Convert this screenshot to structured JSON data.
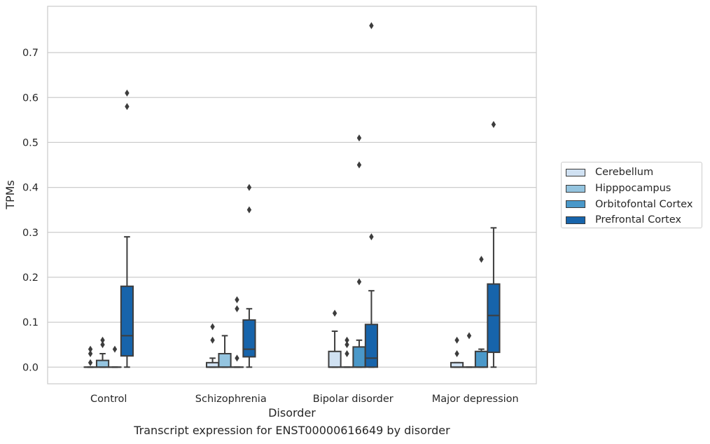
{
  "chart_data": {
    "type": "box",
    "xlabel": "Disorder",
    "ylabel": "TPMs",
    "caption": "Transcript expression for ENST00000616649 by disorder",
    "categories": [
      "Control",
      "Schizophrenia",
      "Bipolar disorder",
      "Major depression"
    ],
    "ylim": [
      -0.037,
      0.803
    ],
    "yticks": [
      0.0,
      0.1,
      0.2,
      0.3,
      0.4,
      0.5,
      0.6,
      0.7
    ],
    "ytick_labels": [
      "0.0",
      "0.1",
      "0.2",
      "0.3",
      "0.4",
      "0.5",
      "0.6",
      "0.7"
    ],
    "grid": "horizontal",
    "legend_position": "right",
    "series": [
      {
        "name": "Cerebellum",
        "color": "#d0e1f2",
        "boxes": [
          {
            "whislo": 0.0,
            "q1": 0.0,
            "med": 0.0,
            "q3": 0.0,
            "whishi": 0.0,
            "fliers": [
              0.04,
              0.03,
              0.01
            ]
          },
          {
            "whislo": 0.0,
            "q1": 0.0,
            "med": 0.0,
            "q3": 0.01,
            "whishi": 0.02,
            "fliers": [
              0.09,
              0.06
            ]
          },
          {
            "whislo": 0.0,
            "q1": 0.0,
            "med": 0.0,
            "q3": 0.035,
            "whishi": 0.08,
            "fliers": [
              0.12
            ]
          },
          {
            "whislo": 0.0,
            "q1": 0.0,
            "med": 0.0,
            "q3": 0.01,
            "whishi": 0.01,
            "fliers": [
              0.06,
              0.03
            ]
          }
        ]
      },
      {
        "name": "Hipppocampus",
        "color": "#94c4df",
        "boxes": [
          {
            "whislo": 0.0,
            "q1": 0.0,
            "med": 0.0,
            "q3": 0.015,
            "whishi": 0.03,
            "fliers": [
              0.06,
              0.05
            ]
          },
          {
            "whislo": 0.0,
            "q1": 0.0,
            "med": 0.0,
            "q3": 0.03,
            "whishi": 0.07,
            "fliers": []
          },
          {
            "whislo": 0.0,
            "q1": 0.0,
            "med": 0.0,
            "q3": 0.0,
            "whishi": 0.0,
            "fliers": [
              0.06,
              0.05,
              0.03
            ]
          },
          {
            "whislo": 0.0,
            "q1": 0.0,
            "med": 0.0,
            "q3": 0.0,
            "whishi": 0.0,
            "fliers": [
              0.07
            ]
          }
        ]
      },
      {
        "name": "Orbitofontal Cortex",
        "color": "#4a98c9",
        "boxes": [
          {
            "whislo": 0.0,
            "q1": 0.0,
            "med": 0.0,
            "q3": 0.0,
            "whishi": 0.0,
            "fliers": [
              0.04
            ]
          },
          {
            "whislo": 0.0,
            "q1": 0.0,
            "med": 0.0,
            "q3": 0.0,
            "whishi": 0.0,
            "fliers": [
              0.15,
              0.13,
              0.02
            ]
          },
          {
            "whislo": 0.0,
            "q1": 0.0,
            "med": 0.0,
            "q3": 0.045,
            "whishi": 0.06,
            "fliers": [
              0.51,
              0.45,
              0.19
            ]
          },
          {
            "whislo": 0.0,
            "q1": 0.0,
            "med": 0.0,
            "q3": 0.035,
            "whishi": 0.04,
            "fliers": [
              0.24
            ]
          }
        ]
      },
      {
        "name": "Prefrontal Cortex",
        "color": "#1764ab",
        "boxes": [
          {
            "whislo": 0.0,
            "q1": 0.025,
            "med": 0.07,
            "q3": 0.18,
            "whishi": 0.29,
            "fliers": [
              0.61,
              0.58
            ]
          },
          {
            "whislo": 0.0,
            "q1": 0.023,
            "med": 0.04,
            "q3": 0.105,
            "whishi": 0.13,
            "fliers": [
              0.4,
              0.35
            ]
          },
          {
            "whislo": 0.0,
            "q1": 0.0,
            "med": 0.02,
            "q3": 0.095,
            "whishi": 0.17,
            "fliers": [
              0.76,
              0.29
            ]
          },
          {
            "whislo": 0.0,
            "q1": 0.033,
            "med": 0.115,
            "q3": 0.185,
            "whishi": 0.31,
            "fliers": [
              0.54
            ]
          }
        ]
      }
    ]
  }
}
